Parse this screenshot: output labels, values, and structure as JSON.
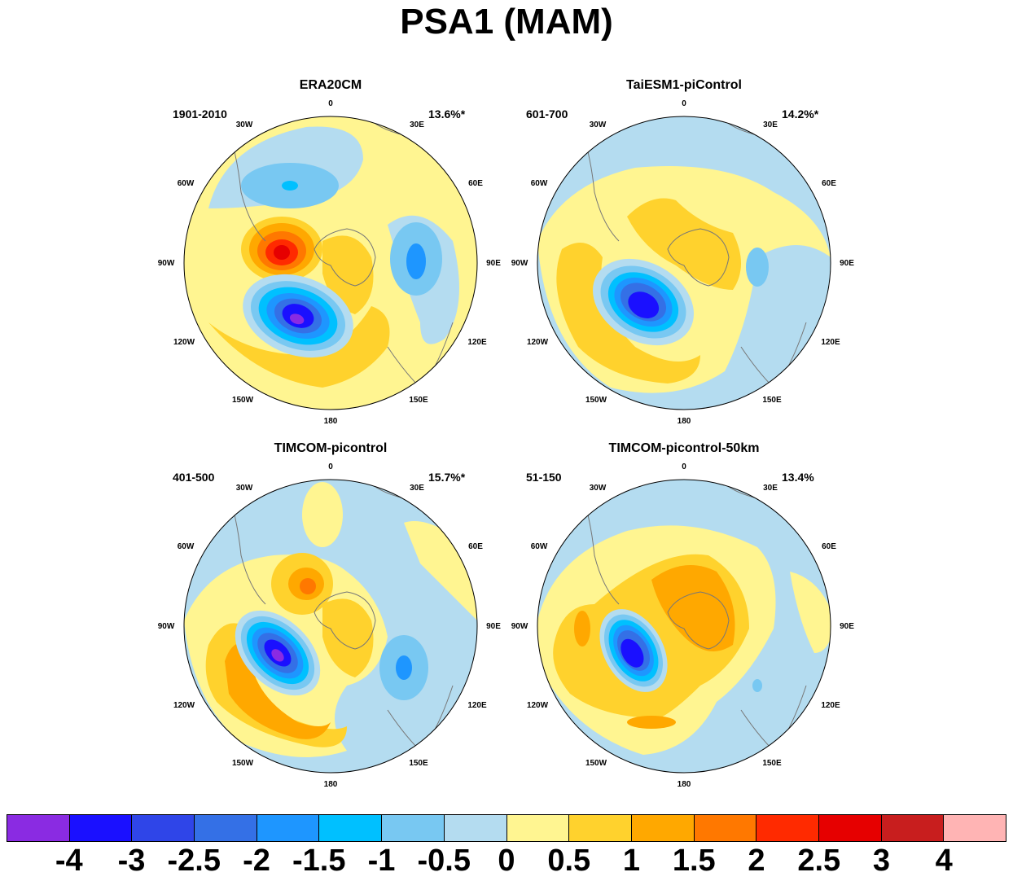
{
  "title": "PSA1 (MAM)",
  "panels": [
    {
      "name": "ERA20CM",
      "period": "1901-2010",
      "variance": "13.6%*"
    },
    {
      "name": "TaiESM1-piControl",
      "period": "601-700",
      "variance": "14.2%*"
    },
    {
      "name": "TIMCOM-picontrol",
      "period": "401-500",
      "variance": "15.7%*"
    },
    {
      "name": "TIMCOM-picontrol-50km",
      "period": "51-150",
      "variance": "13.4%"
    }
  ],
  "longitude_labels": [
    "0",
    "30E",
    "60E",
    "90E",
    "120E",
    "150E",
    "180",
    "150W",
    "120W",
    "90W",
    "60W",
    "30W"
  ],
  "colorbar": {
    "colors": [
      "#8a2be2",
      "#1a10ff",
      "#2f45e8",
      "#3470e6",
      "#1e96ff",
      "#00c0ff",
      "#78c8f2",
      "#b4dcf0",
      "#fff591",
      "#ffd22d",
      "#ffa800",
      "#ff7800",
      "#ff2a00",
      "#e60000",
      "#c81e1e",
      "#ffb4b4"
    ],
    "labels": [
      "-4",
      "-3",
      "-2.5",
      "-2",
      "-1.5",
      "-1",
      "-0.5",
      "0",
      "0.5",
      "1",
      "1.5",
      "2",
      "2.5",
      "3",
      "4"
    ]
  }
}
